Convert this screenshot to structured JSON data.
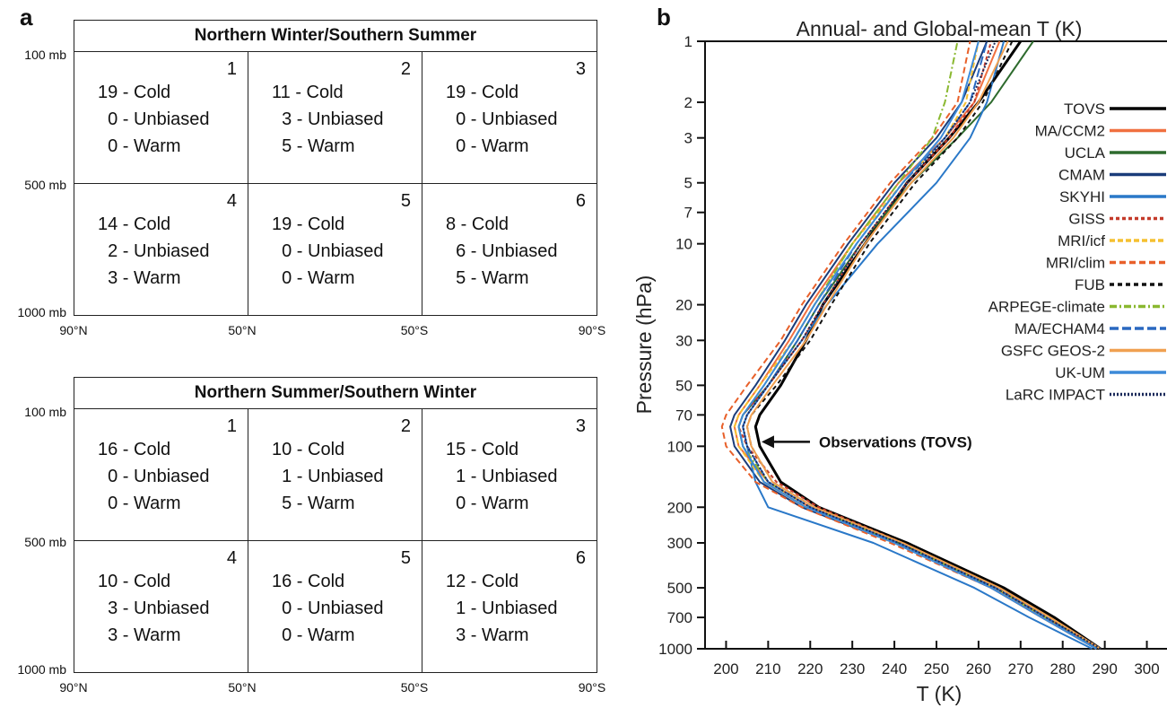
{
  "panel_a": {
    "letter": "a",
    "pressure_levels": [
      "100 mb",
      "500 mb",
      "1000 mb"
    ],
    "latitudes": [
      "90°N",
      "50°N",
      "50°S",
      "90°S"
    ],
    "tables": [
      {
        "title": "Northern Winter/Southern Summer",
        "cells": [
          {
            "num": "1",
            "lines": [
              "19 - Cold",
              "  0 - Unbiased",
              "  0 - Warm"
            ]
          },
          {
            "num": "2",
            "lines": [
              "11 - Cold",
              "  3 - Unbiased",
              "  5 - Warm"
            ]
          },
          {
            "num": "3",
            "lines": [
              "19 - Cold",
              "  0 - Unbiased",
              "  0 - Warm"
            ]
          },
          {
            "num": "4",
            "lines": [
              "14 - Cold",
              "  2 - Unbiased",
              "  3 - Warm"
            ]
          },
          {
            "num": "5",
            "lines": [
              "19 - Cold",
              "  0 - Unbiased",
              "  0 - Warm"
            ]
          },
          {
            "num": "6",
            "lines": [
              "8 - Cold",
              "  6 - Unbiased",
              "  5 - Warm"
            ]
          }
        ]
      },
      {
        "title": "Northern Summer/Southern Winter",
        "cells": [
          {
            "num": "1",
            "lines": [
              "16 - Cold",
              "  0 - Unbiased",
              "  0 - Warm"
            ]
          },
          {
            "num": "2",
            "lines": [
              "10 - Cold",
              "  1 - Unbiased",
              "  5 - Warm"
            ]
          },
          {
            "num": "3",
            "lines": [
              "15 - Cold",
              "  1 - Unbiased",
              "  0 - Warm"
            ]
          },
          {
            "num": "4",
            "lines": [
              "10 - Cold",
              "  3 - Unbiased",
              "  3 - Warm"
            ]
          },
          {
            "num": "5",
            "lines": [
              "16 - Cold",
              "  0 - Unbiased",
              "  0 - Warm"
            ]
          },
          {
            "num": "6",
            "lines": [
              "12 - Cold",
              "  1 - Unbiased",
              "  3 - Warm"
            ]
          }
        ]
      }
    ]
  },
  "panel_b": {
    "letter": "b",
    "annotation": "Observations (TOVS)"
  },
  "chart_data": {
    "type": "line",
    "title": "Annual- and Global-mean T (K)",
    "xlabel": "T (K)",
    "ylabel": "Pressure (hPa)",
    "xlim": [
      195,
      305
    ],
    "ylim": [
      1000,
      1
    ],
    "y_scale": "log",
    "x_ticks": [
      200,
      210,
      220,
      230,
      240,
      250,
      260,
      270,
      280,
      290,
      300
    ],
    "y_ticks": [
      1000,
      700,
      500,
      300,
      200,
      100,
      70,
      50,
      30,
      20,
      10,
      7,
      5,
      3,
      2,
      1
    ],
    "legend_position": "right",
    "annotation_target": {
      "x": 208,
      "y": 100
    },
    "pressure": [
      1000,
      700,
      500,
      300,
      200,
      150,
      100,
      80,
      70,
      50,
      30,
      20,
      10,
      5,
      3,
      2,
      1
    ],
    "series": [
      {
        "name": "TOVS",
        "color": "#000000",
        "dash": "solid",
        "width": 3,
        "values": [
          289,
          278,
          266,
          243,
          222,
          213,
          208,
          207,
          208,
          213,
          219,
          223,
          233,
          243,
          253,
          260,
          270
        ]
      },
      {
        "name": "MA/CCM2",
        "color": "#f07040",
        "dash": "solid",
        "width": 2,
        "values": [
          288,
          275,
          263,
          240,
          220,
          210,
          203,
          202,
          203,
          208,
          215,
          220,
          230,
          241,
          252,
          259,
          265
        ]
      },
      {
        "name": "UCLA",
        "color": "#2e6b2e",
        "dash": "solid",
        "width": 2,
        "values": [
          289,
          276,
          264,
          241,
          219,
          209,
          204,
          203,
          204,
          210,
          217,
          222,
          232,
          244,
          255,
          263,
          273
        ]
      },
      {
        "name": "CMAM",
        "color": "#1a3c7a",
        "dash": "solid",
        "width": 2,
        "values": [
          288,
          275,
          263,
          240,
          218,
          208,
          202,
          201,
          202,
          207,
          214,
          219,
          229,
          240,
          250,
          256,
          262
        ]
      },
      {
        "name": "SKYHI",
        "color": "#2a78c8",
        "dash": "solid",
        "width": 2,
        "values": [
          287,
          272,
          259,
          235,
          210,
          207,
          205,
          204,
          205,
          210,
          218,
          224,
          236,
          250,
          258,
          262,
          266
        ]
      },
      {
        "name": "GISS",
        "color": "#c43a2a",
        "dash": "4,3",
        "width": 2,
        "values": [
          289,
          276,
          265,
          242,
          222,
          212,
          205,
          203,
          204,
          210,
          218,
          223,
          232,
          243,
          253,
          259,
          263
        ]
      },
      {
        "name": "MRI/icf",
        "color": "#f5c030",
        "dash": "6,3",
        "width": 2,
        "values": [
          288,
          275,
          264,
          240,
          219,
          209,
          203,
          202,
          203,
          208,
          216,
          221,
          230,
          242,
          252,
          257,
          260
        ]
      },
      {
        "name": "MRI/clim",
        "color": "#e8602a",
        "dash": "7,4",
        "width": 2,
        "values": [
          288,
          275,
          263,
          239,
          218,
          207,
          200,
          199,
          200,
          205,
          213,
          218,
          228,
          239,
          249,
          255,
          258
        ]
      },
      {
        "name": "FUB",
        "color": "#111111",
        "dash": "5,4",
        "width": 2,
        "values": [
          289,
          277,
          265,
          242,
          221,
          211,
          206,
          205,
          206,
          212,
          220,
          225,
          234,
          245,
          255,
          261,
          268
        ]
      },
      {
        "name": "ARPEGE-climate",
        "color": "#8ab830",
        "dash": "8,3,2,3",
        "width": 2,
        "values": [
          289,
          276,
          264,
          241,
          220,
          210,
          204,
          203,
          204,
          209,
          216,
          221,
          230,
          241,
          249,
          252,
          255
        ]
      },
      {
        "name": "MA/ECHAM4",
        "color": "#2a68c0",
        "dash": "10,4",
        "width": 2,
        "values": [
          288,
          276,
          264,
          241,
          220,
          210,
          205,
          204,
          205,
          210,
          217,
          222,
          231,
          242,
          252,
          258,
          262
        ]
      },
      {
        "name": "GSFC GEOS-2",
        "color": "#f0a050",
        "dash": "solid",
        "width": 2,
        "values": [
          289,
          277,
          265,
          242,
          221,
          211,
          206,
          205,
          206,
          211,
          219,
          224,
          233,
          244,
          254,
          260,
          267
        ]
      },
      {
        "name": "UK-UM",
        "color": "#3c8ad8",
        "dash": "solid",
        "width": 2,
        "values": [
          288,
          275,
          263,
          240,
          219,
          209,
          204,
          203,
          204,
          209,
          216,
          221,
          231,
          242,
          251,
          256,
          260
        ]
      },
      {
        "name": "LaRC IMPACT",
        "color": "#1a2a5a",
        "dash": "2,2",
        "width": 2,
        "values": [
          289,
          276,
          264,
          241,
          220,
          210,
          205,
          204,
          205,
          210,
          218,
          223,
          232,
          243,
          252,
          258,
          264
        ]
      }
    ]
  }
}
